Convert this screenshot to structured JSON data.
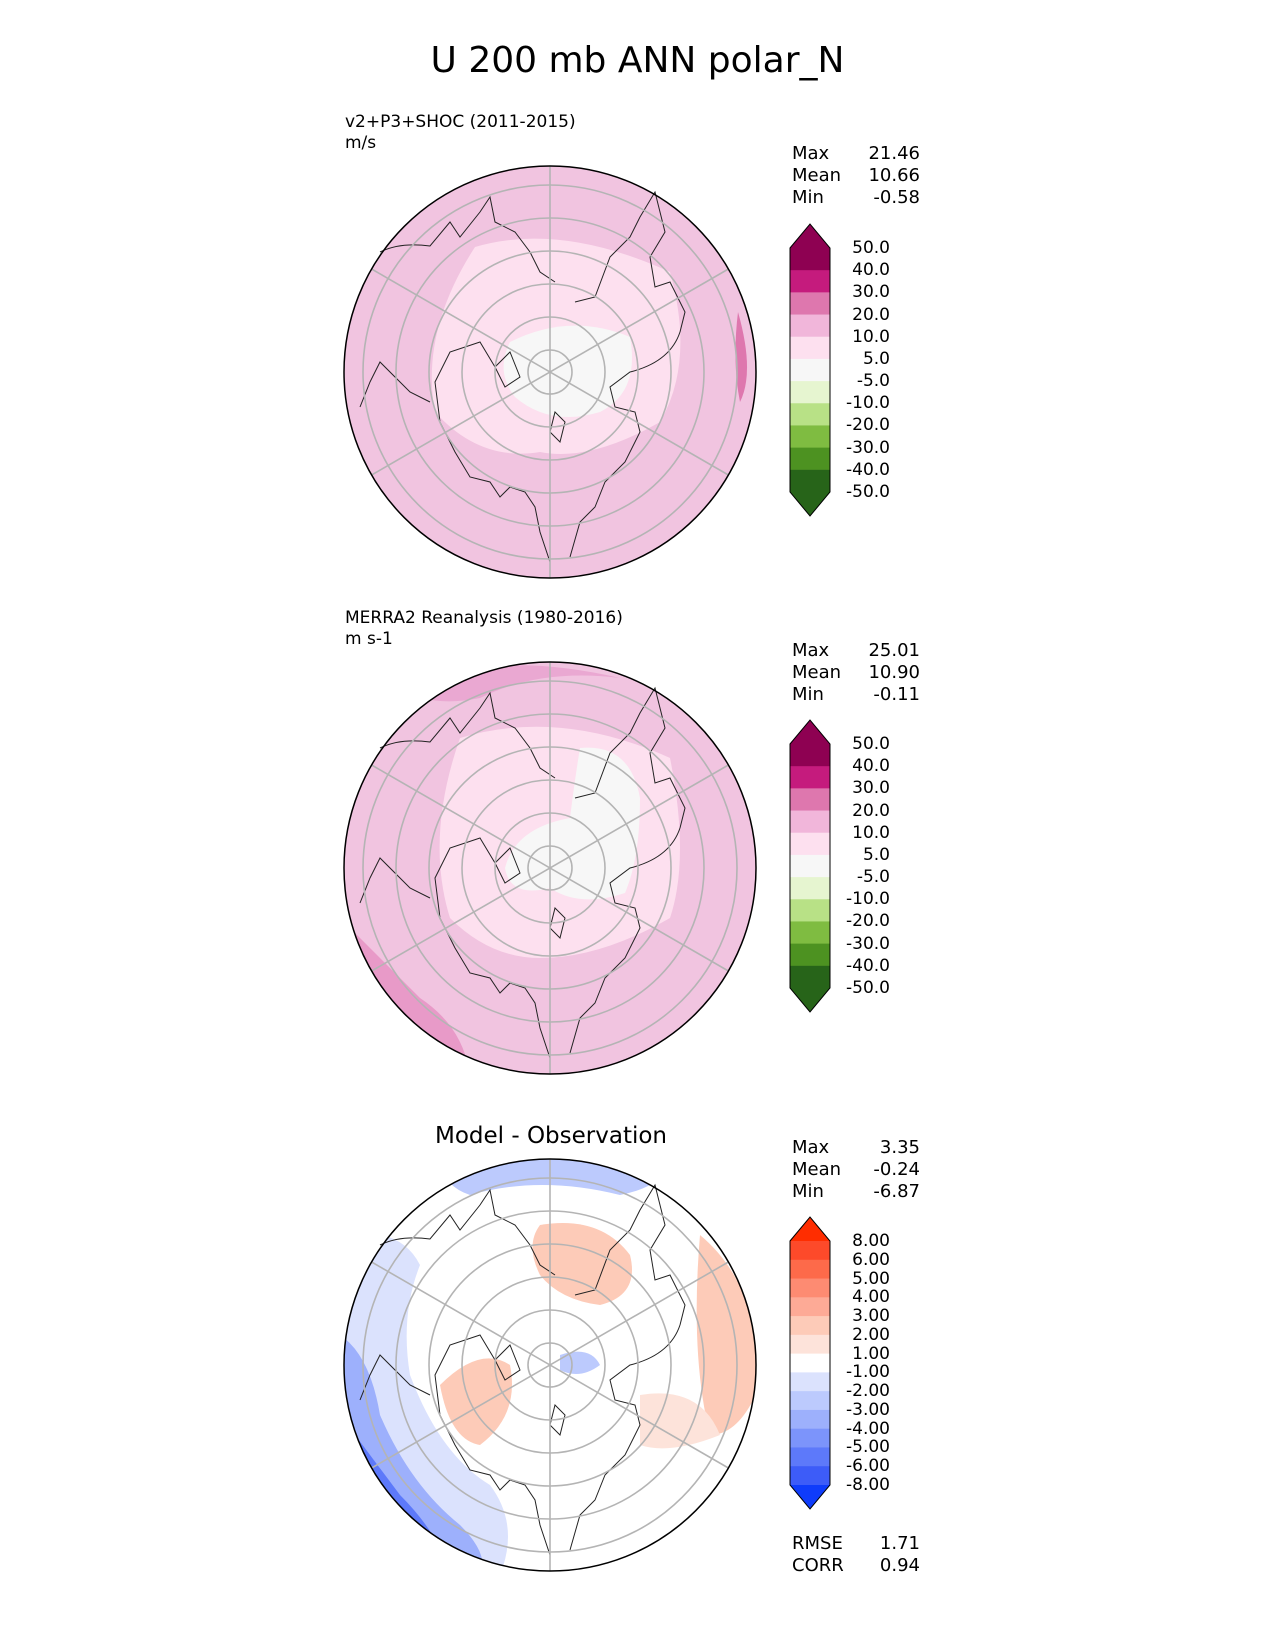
{
  "title": "U 200 mb ANN polar_N",
  "panels": [
    {
      "id": "test",
      "label": "v2+P3+SHOC (2011-2015)\nm/s",
      "center_title": "",
      "stats": [
        {
          "name": "Max",
          "value": "21.46"
        },
        {
          "name": "Mean",
          "value": "10.66"
        },
        {
          "name": "Min",
          "value": "-0.58"
        }
      ],
      "colorbar": {
        "levels": [
          "50.0",
          "40.0",
          "30.0",
          "20.0",
          "10.0",
          "5.0",
          "-5.0",
          "-10.0",
          "-20.0",
          "-30.0",
          "-40.0",
          "-50.0"
        ],
        "colors": [
          "#8e0152",
          "#c51b7d",
          "#de77ae",
          "#f1b6da",
          "#fde0ef",
          "#f7f7f7",
          "#e6f5d0",
          "#b8e186",
          "#7fbc41",
          "#4d9221",
          "#276419"
        ],
        "extend_top": "#8e0152",
        "extend_bottom": "#276419"
      },
      "background": "#f1c4e0"
    },
    {
      "id": "ref",
      "label": "MERRA2 Reanalysis (1980-2016)\nm s-1",
      "center_title": "",
      "stats": [
        {
          "name": "Max",
          "value": "25.01"
        },
        {
          "name": "Mean",
          "value": "10.90"
        },
        {
          "name": "Min",
          "value": "-0.11"
        }
      ],
      "colorbar": {
        "levels": [
          "50.0",
          "40.0",
          "30.0",
          "20.0",
          "10.0",
          "5.0",
          "-5.0",
          "-10.0",
          "-20.0",
          "-30.0",
          "-40.0",
          "-50.0"
        ],
        "colors": [
          "#8e0152",
          "#c51b7d",
          "#de77ae",
          "#f1b6da",
          "#fde0ef",
          "#f7f7f7",
          "#e6f5d0",
          "#b8e186",
          "#7fbc41",
          "#4d9221",
          "#276419"
        ],
        "extend_top": "#8e0152",
        "extend_bottom": "#276419"
      },
      "background": "#f1c4e0"
    },
    {
      "id": "diff",
      "label": "",
      "center_title": "Model - Observation",
      "stats": [
        {
          "name": "Max",
          "value": "3.35"
        },
        {
          "name": "Mean",
          "value": "-0.24"
        },
        {
          "name": "Min",
          "value": "-6.87"
        }
      ],
      "colorbar": {
        "levels": [
          "8.00",
          "6.00",
          "5.00",
          "4.00",
          "3.00",
          "2.00",
          "1.00",
          "-1.00",
          "-2.00",
          "-3.00",
          "-4.00",
          "-5.00",
          "-6.00",
          "-8.00"
        ],
        "colors": [
          "#fd4a2a",
          "#fd6a4a",
          "#fd8b72",
          "#fdaa96",
          "#fdcbb8",
          "#fde3da",
          "#ffffff",
          "#dbe2fd",
          "#bccafd",
          "#9db0fc",
          "#7c94fb",
          "#5d79fa",
          "#3d5cf8"
        ],
        "extend_top": "#ff2d00",
        "extend_bottom": "#0f3cfb"
      },
      "background": "#ffffff"
    }
  ],
  "metrics": [
    {
      "name": "RMSE",
      "value": "1.71"
    },
    {
      "name": "CORR",
      "value": "0.94"
    }
  ]
}
